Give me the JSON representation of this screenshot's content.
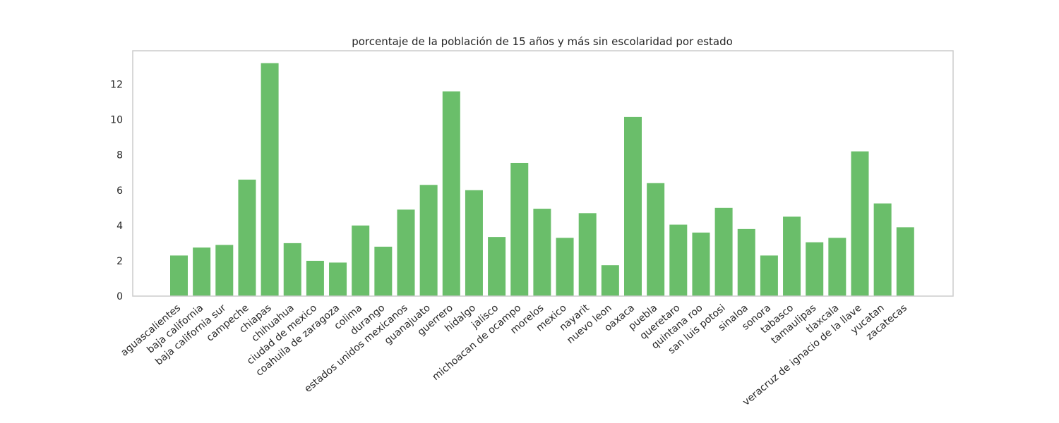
{
  "chart_data": {
    "type": "bar",
    "title": "porcentaje de la población de 15 años y más sin escolaridad por estado",
    "xlabel": "",
    "ylabel": "",
    "ylim": [
      0,
      13.9
    ],
    "yticks": [
      0,
      2,
      4,
      6,
      8,
      10,
      12
    ],
    "grid": false,
    "bar_color": "#6abe6a",
    "categories": [
      "aguascalientes",
      "baja california",
      "baja california sur",
      "campeche",
      "chiapas",
      "chihuahua",
      "ciudad de mexico",
      "coahuila de zaragoza",
      "colima",
      "durango",
      "estados unidos mexicanos",
      "guanajuato",
      "guerrero",
      "hidalgo",
      "jalisco",
      "michoacan de ocampo",
      "morelos",
      "mexico",
      "nayarit",
      "nuevo leon",
      "oaxaca",
      "puebla",
      "queretaro",
      "quintana roo",
      "san luis potosi",
      "sinaloa",
      "sonora",
      "tabasco",
      "tamaulipas",
      "tlaxcala",
      "veracruz de ignacio de la llave",
      "yucatan",
      "zacatecas"
    ],
    "values": [
      2.3,
      2.75,
      2.9,
      6.6,
      13.2,
      3.0,
      2.0,
      1.9,
      4.0,
      2.8,
      4.9,
      6.3,
      11.6,
      6.0,
      3.35,
      7.55,
      4.95,
      3.3,
      4.7,
      1.75,
      10.15,
      6.4,
      4.05,
      3.6,
      5.0,
      3.8,
      2.3,
      4.5,
      3.05,
      3.3,
      8.2,
      5.25,
      3.9
    ]
  }
}
